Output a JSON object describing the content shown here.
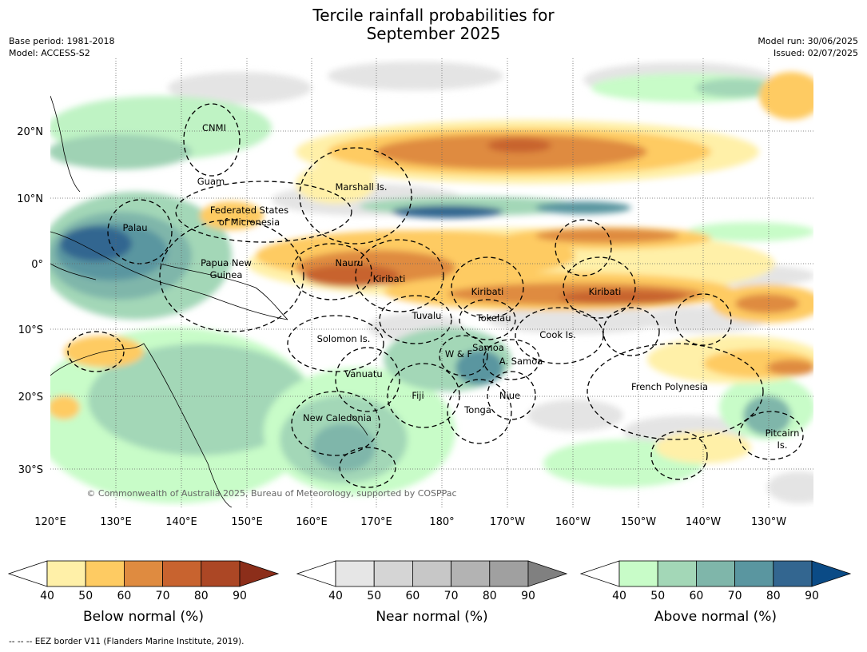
{
  "title": {
    "line1": "Tercile rainfall probabilities for",
    "line2": "September 2025"
  },
  "meta_left": {
    "base_period": "Base period: 1981-2018",
    "model": "Model: ACCESS-S2"
  },
  "meta_right": {
    "model_run": "Model run: 30/06/2025",
    "issued": "Issued: 02/07/2025"
  },
  "map": {
    "lat_ticks": [
      "20°N",
      "10°N",
      "0°",
      "10°S",
      "20°S",
      "30°S"
    ],
    "lon_ticks": [
      "120°E",
      "130°E",
      "140°E",
      "150°E",
      "160°E",
      "170°E",
      "180°",
      "170°W",
      "160°W",
      "150°W",
      "140°W",
      "130°W"
    ],
    "copyright": "© Commonwealth of Australia 2025, Bureau of Meteorology, supported by COSPPac",
    "region_labels": {
      "cnmi": "CNMI",
      "guam": "Guam",
      "fsm_1": "Federated States",
      "fsm_2": "of Micronesia",
      "palau": "Palau",
      "marshall": "Marshall Is.",
      "png_1": "Papua New",
      "png_2": "Guinea",
      "nauru": "Nauru",
      "kiribati_west": "Kiribati",
      "kiribati_mid": "Kiribati",
      "kiribati_east": "Kiribati",
      "tuvalu": "Tuvalu",
      "tokelau": "Tokelau",
      "cook": "Cook Is.",
      "solomon": "Solomon Is.",
      "samoa": "Samoa",
      "wallis": "W & F",
      "asamoa": "A. Samoa",
      "vanuatu": "Vanuatu",
      "fiji": "Fiji",
      "niue": "Niue",
      "tonga": "Tonga",
      "new_caledonia": "New Caledonia",
      "french_polynesia": "French Polynesia",
      "pitcairn_1": "Pitcairn",
      "pitcairn_2": "Is."
    }
  },
  "colorbars": [
    {
      "title": "Below normal (%)",
      "ticks": [
        "40",
        "50",
        "60",
        "70",
        "80",
        "90"
      ],
      "colors": [
        "#fff0a8",
        "#fecb62",
        "#df8b40",
        "#c8632f",
        "#ac4725",
        "#8c2e1a"
      ]
    },
    {
      "title": "Near normal (%)",
      "ticks": [
        "40",
        "50",
        "60",
        "70",
        "80",
        "90"
      ],
      "colors": [
        "#e6e6e6",
        "#d5d5d5",
        "#c7c7c7",
        "#b3b3b3",
        "#a0a0a0",
        "#808080"
      ]
    },
    {
      "title": "Above normal (%)",
      "ticks": [
        "40",
        "50",
        "60",
        "70",
        "80",
        "90"
      ],
      "colors": [
        "#c8fcc8",
        "#a3d7b7",
        "#7fb6aa",
        "#5a96a0",
        "#336690",
        "#0b4b86"
      ]
    }
  ],
  "footer": "--  --  -- EEZ border V11 (Flanders Marine Institute, 2019)."
}
